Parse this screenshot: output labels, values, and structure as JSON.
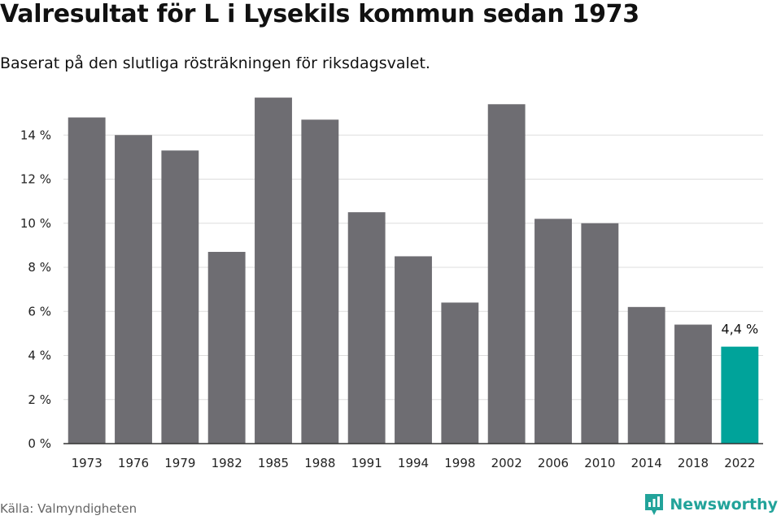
{
  "header": {
    "title": "Valresultat för L i Lysekils kommun sedan 1973",
    "subtitle": "Baserat på den slutliga rösträkningen för riksdagsvalet."
  },
  "footer": {
    "source": "Källa: Valmyndigheten",
    "brand": "Newsworthy"
  },
  "colors": {
    "bar": "#6e6d72",
    "highlight": "#00a39a",
    "grid": "#dddddd",
    "axis": "#333333"
  },
  "chart_data": {
    "type": "bar",
    "title": "Valresultat för L i Lysekils kommun sedan 1973",
    "subtitle": "Baserat på den slutliga rösträkningen för riksdagsvalet.",
    "categories": [
      "1973",
      "1976",
      "1979",
      "1982",
      "1985",
      "1988",
      "1991",
      "1994",
      "1998",
      "2002",
      "2006",
      "2010",
      "2014",
      "2018",
      "2022"
    ],
    "values": [
      14.8,
      14.0,
      13.3,
      8.7,
      15.7,
      14.7,
      10.5,
      8.5,
      6.4,
      15.4,
      10.2,
      10.0,
      6.2,
      5.4,
      4.4
    ],
    "ylim": [
      0,
      16
    ],
    "yticks": [
      0,
      2,
      4,
      6,
      8,
      10,
      12,
      14
    ],
    "ytick_labels": [
      "0 %",
      "2 %",
      "4 %",
      "6 %",
      "8 %",
      "10 %",
      "12 %",
      "14 %"
    ],
    "highlight_index": 14,
    "annotations": [
      {
        "category": "2022",
        "text": "4,4 %"
      }
    ],
    "xlabel": "",
    "ylabel": "",
    "grid": true,
    "legend": "none"
  }
}
